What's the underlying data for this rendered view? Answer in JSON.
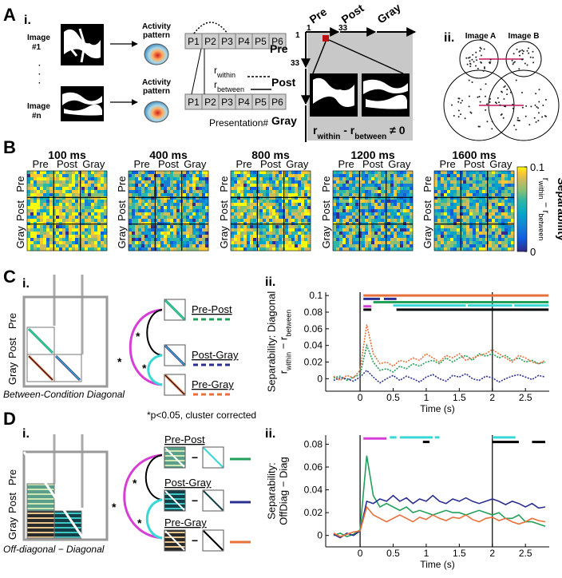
{
  "panelA": {
    "letter": "A",
    "sub_i": "i.",
    "image1": [
      "Image",
      "#1"
    ],
    "imagen": [
      "Image",
      "#n"
    ],
    "ellipsis": [
      "·",
      "·",
      "·"
    ],
    "activity": [
      "Activity",
      "pattern"
    ],
    "presentations": [
      "P1",
      "P2",
      "P3",
      "P4",
      "P5",
      "P6"
    ],
    "r_within": [
      "r",
      "within"
    ],
    "r_between": [
      "r",
      "between"
    ],
    "presentation_label": "Presentation#",
    "matrix_top": [
      "Pre",
      "Post",
      "Gray"
    ],
    "matrix_left": [
      "Pre",
      "Post",
      "Gray"
    ],
    "index_start": "1",
    "index_end": "33",
    "formula": [
      "r",
      "within",
      " - r",
      "between",
      " ≠ 0"
    ],
    "sub_ii": "ii.",
    "image_a": "Image A",
    "image_b": "Image B"
  },
  "panelB": {
    "letter": "B",
    "times": [
      "100 ms",
      "400 ms",
      "800 ms",
      "1200 ms",
      "1600 ms"
    ],
    "conditions": [
      "Pre",
      "Post",
      "Gray"
    ],
    "colorbar": {
      "label": "Separability",
      "formula": [
        "r",
        "within",
        " − r",
        "between"
      ],
      "lim": [
        0,
        0.1
      ],
      "ticks": [
        0,
        0.1
      ]
    }
  },
  "panelC": {
    "letter": "C",
    "sub_i": "i.",
    "conditions": [
      "Pre",
      "Post",
      "Gray"
    ],
    "caption": "Between-Condition Diagonal",
    "star": "*",
    "note": "*p<0.05, cluster corrected",
    "sub_ii": "ii."
  },
  "panelD": {
    "letter": "D",
    "sub_i": "i.",
    "conditions": [
      "Pre",
      "Post",
      "Gray"
    ],
    "caption": "Off-diagonal − Diagonal",
    "star": "*",
    "minus": "−",
    "sub_ii": "ii."
  },
  "chart_data": [
    {
      "type": "line",
      "ylabel": [
        "Separability: Diagonal"
      ],
      "ylabel_formula": [
        "r",
        "within",
        " − r",
        "between"
      ],
      "xlabel": "Time (s)",
      "line_style": "dotted",
      "x": [
        -0.4,
        -0.3,
        -0.2,
        -0.1,
        0,
        0.1,
        0.2,
        0.3,
        0.4,
        0.5,
        0.6,
        0.7,
        0.8,
        0.9,
        1.0,
        1.1,
        1.2,
        1.3,
        1.4,
        1.5,
        1.6,
        1.7,
        1.8,
        1.9,
        2.0,
        2.1,
        2.2,
        2.3,
        2.4,
        2.5,
        2.6,
        2.7,
        2.8
      ],
      "xlim": [
        -0.52,
        2.86
      ],
      "xticks": [
        0,
        0.5,
        1,
        1.5,
        2,
        2.5
      ],
      "ylim": [
        -0.015,
        0.104
      ],
      "yticks": [
        0,
        0.02,
        0.04,
        0.06,
        0.08,
        0.1
      ],
      "vlines": [
        0,
        2
      ],
      "series": [
        {
          "name": "Pre-Post",
          "color": "#22a05a",
          "values": [
            0.001,
            0.003,
            -0.002,
            0.002,
            0.005,
            0.04,
            0.02,
            0.01,
            0.012,
            0.008,
            0.015,
            0.012,
            0.018,
            0.015,
            0.02,
            0.022,
            0.018,
            0.025,
            0.02,
            0.025,
            0.028,
            0.022,
            0.03,
            0.027,
            0.03,
            0.025,
            0.028,
            0.022,
            0.025,
            0.02,
            0.022,
            0.018,
            0.02
          ]
        },
        {
          "name": "Post-Gray",
          "color": "#2b2f8f",
          "values": [
            -0.002,
            0.001,
            0.0,
            -0.003,
            0.002,
            0.01,
            0.002,
            -0.005,
            0.0,
            0.004,
            -0.002,
            0.003,
            0.0,
            -0.004,
            0.002,
            0.005,
            0.0,
            -0.003,
            0.004,
            0.002,
            0.006,
            0.0,
            -0.002,
            0.003,
            0.001,
            -0.004,
            0.0,
            0.003,
            0.005,
            0.002,
            -0.001,
            0.004,
            0.002
          ]
        },
        {
          "name": "Pre-Gray",
          "color": "#e8703a",
          "values": [
            0.003,
            -0.002,
            0.004,
            0.001,
            0.01,
            0.065,
            0.03,
            0.018,
            0.02,
            0.015,
            0.022,
            0.02,
            0.025,
            0.022,
            0.03,
            0.025,
            0.02,
            0.028,
            0.025,
            0.03,
            0.022,
            0.025,
            0.028,
            0.03,
            0.035,
            0.03,
            0.025,
            0.02,
            0.028,
            0.025,
            0.02,
            0.018,
            0.022
          ]
        }
      ],
      "sig_bars": [
        {
          "color": "#e8703a",
          "y": 0.1,
          "ranges": [
            [
              0.05,
              2.85
            ]
          ]
        },
        {
          "color": "#2b2f8f",
          "y": 0.096,
          "ranges": [
            [
              0.05,
              0.3
            ],
            [
              0.36,
              0.55
            ]
          ]
        },
        {
          "color": "#22a05a",
          "y": 0.092,
          "ranges": [
            [
              0.2,
              2.85
            ]
          ]
        },
        {
          "color": "#3ad7d6",
          "y": 0.088,
          "ranges": [
            [
              0.5,
              1.6
            ],
            [
              1.63,
              2.3
            ],
            [
              2.33,
              2.85
            ]
          ]
        },
        {
          "color": "#d63fd6",
          "y": 0.087,
          "ranges": [
            [
              0.05,
              0.17
            ]
          ]
        },
        {
          "color": "#000000",
          "y": 0.083,
          "ranges": [
            [
              0.05,
              0.17
            ],
            [
              0.55,
              2.85
            ]
          ]
        }
      ]
    },
    {
      "type": "line",
      "ylabel": [
        "Separability:",
        "OffDiag − Diag"
      ],
      "xlabel": "Time (s)",
      "line_style": "solid",
      "x": [
        -0.4,
        -0.3,
        -0.2,
        -0.1,
        0,
        0.1,
        0.2,
        0.3,
        0.4,
        0.5,
        0.6,
        0.7,
        0.8,
        0.9,
        1.0,
        1.1,
        1.2,
        1.3,
        1.4,
        1.5,
        1.6,
        1.7,
        1.8,
        1.9,
        2.0,
        2.1,
        2.2,
        2.3,
        2.4,
        2.5,
        2.6,
        2.7,
        2.8
      ],
      "xlim": [
        -0.52,
        2.86
      ],
      "xticks": [
        0,
        0.5,
        1,
        1.5,
        2,
        2.5
      ],
      "ylim": [
        -0.01,
        0.088
      ],
      "yticks": [
        0,
        0.02,
        0.04,
        0.06,
        0.08
      ],
      "vlines": [
        0,
        2
      ],
      "series": [
        {
          "name": "Pre-Post",
          "color": "#22a05a",
          "values": [
            0.0,
            0.002,
            -0.001,
            0.001,
            0.005,
            0.07,
            0.035,
            0.025,
            0.028,
            0.025,
            0.022,
            0.025,
            0.02,
            0.022,
            0.02,
            0.018,
            0.02,
            0.022,
            0.02,
            0.02,
            0.018,
            0.02,
            0.022,
            0.02,
            0.018,
            0.02,
            0.015,
            0.015,
            0.018,
            0.012,
            0.012,
            0.01,
            0.008
          ]
        },
        {
          "name": "Post-Gray",
          "color": "#2b2f8f",
          "values": [
            0.001,
            -0.002,
            0.002,
            0.0,
            0.004,
            0.03,
            0.028,
            0.032,
            0.03,
            0.035,
            0.03,
            0.033,
            0.028,
            0.032,
            0.03,
            0.035,
            0.03,
            0.028,
            0.032,
            0.03,
            0.033,
            0.03,
            0.028,
            0.03,
            0.032,
            0.03,
            0.027,
            0.03,
            0.028,
            0.025,
            0.028,
            0.024,
            0.025
          ]
        },
        {
          "name": "Pre-Gray",
          "color": "#e8703a",
          "values": [
            0.002,
            -0.001,
            0.001,
            0.003,
            0.004,
            0.025,
            0.018,
            0.015,
            0.012,
            0.015,
            0.018,
            0.015,
            0.012,
            0.016,
            0.014,
            0.018,
            0.015,
            0.013,
            0.016,
            0.015,
            0.018,
            0.014,
            0.012,
            0.015,
            0.016,
            0.013,
            0.015,
            0.012,
            0.01,
            0.012,
            0.015,
            0.013,
            0.012
          ]
        }
      ],
      "sig_bars": [
        {
          "color": "#d63fd6",
          "y": 0.085,
          "ranges": [
            [
              0.05,
              0.4
            ]
          ]
        },
        {
          "color": "#3ad7d6",
          "y": 0.086,
          "ranges": [
            [
              0.45,
              0.55
            ],
            [
              0.6,
              1.1
            ],
            [
              1.13,
              1.2
            ],
            [
              2.0,
              2.35
            ]
          ]
        },
        {
          "color": "#000000",
          "y": 0.082,
          "ranges": [
            [
              0.95,
              1.05
            ],
            [
              2.0,
              2.4
            ],
            [
              2.6,
              2.8
            ]
          ]
        }
      ]
    }
  ]
}
